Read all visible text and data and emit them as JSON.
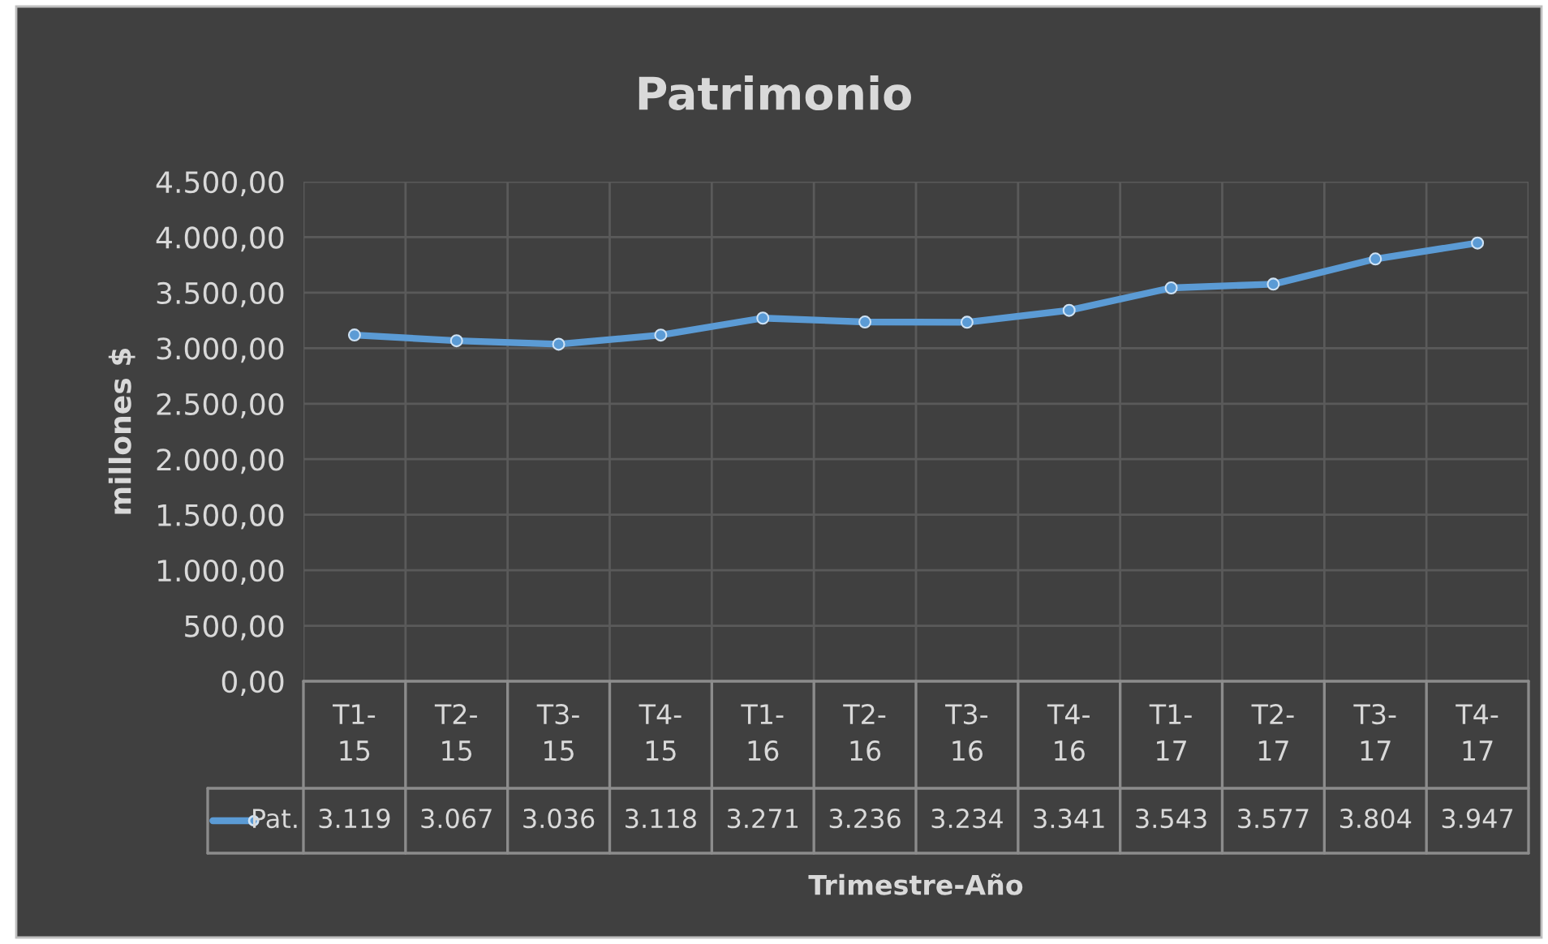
{
  "chart_data": {
    "type": "line",
    "title": "Patrimonio",
    "xlabel": "Trimestre-Año",
    "ylabel": "millones $",
    "categories": [
      "T1-15",
      "T2-15",
      "T3-15",
      "T4-15",
      "T1-16",
      "T2-16",
      "T3-16",
      "T4-16",
      "T1-17",
      "T2-17",
      "T3-17",
      "T4-17"
    ],
    "series": [
      {
        "name": "Pat.",
        "color": "#5b9bd5",
        "values": [
          3119,
          3067,
          3036,
          3118,
          3271,
          3236,
          3234,
          3341,
          3543,
          3577,
          3804,
          3947
        ],
        "value_labels": [
          "3.119",
          "3.067",
          "3.036",
          "3.118",
          "3.271",
          "3.236",
          "3.234",
          "3.341",
          "3.543",
          "3.577",
          "3.804",
          "3.947"
        ]
      }
    ],
    "ylim": [
      0,
      4500
    ],
    "yticks": [
      {
        "value": 0,
        "label": "0,00"
      },
      {
        "value": 500,
        "label": "500,00"
      },
      {
        "value": 1000,
        "label": "1.000,00"
      },
      {
        "value": 1500,
        "label": "1.500,00"
      },
      {
        "value": 2000,
        "label": "2.000,00"
      },
      {
        "value": 2500,
        "label": "2.500,00"
      },
      {
        "value": 3000,
        "label": "3.000,00"
      },
      {
        "value": 3500,
        "label": "3.500,00"
      },
      {
        "value": 4000,
        "label": "4.000,00"
      },
      {
        "value": 4500,
        "label": "4.500,00"
      }
    ],
    "grid": true,
    "marker": "circle",
    "line_style": "solid",
    "legend": "bottom left"
  }
}
